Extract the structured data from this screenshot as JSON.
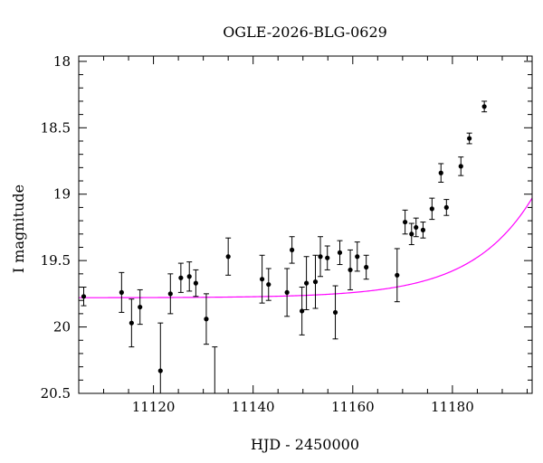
{
  "chart_data": {
    "type": "scatter",
    "title": "OGLE-2026-BLG-0629",
    "xlabel": "HJD - 2450000",
    "ylabel": "I magnitude",
    "xlim": [
      11105,
      11196
    ],
    "ylim": [
      20.5,
      17.96
    ],
    "y_inverted": true,
    "grid": false,
    "x_ticks": [
      11120,
      11140,
      11160,
      11180
    ],
    "x_tick_labels": [
      "11120",
      "11140",
      "11160",
      "11180"
    ],
    "y_ticks": [
      18,
      18.5,
      19,
      19.5,
      20,
      20.5
    ],
    "y_tick_labels": [
      "18",
      "18.5",
      "19",
      "19.5",
      "20",
      "20.5"
    ],
    "colors": {
      "model": "#ff00ff",
      "points": "#000000",
      "axes": "#000000"
    },
    "series": [
      {
        "type": "errorbar",
        "x": [
          11106.0,
          11113.6,
          11115.6,
          11117.3,
          11121.4,
          11123.4,
          11125.5,
          11127.2,
          11128.5,
          11130.6,
          11132.3,
          11135.0,
          11141.8,
          11143.1,
          11146.8,
          11147.8,
          11149.8,
          11150.7,
          11152.5,
          11153.5,
          11154.9,
          11156.5,
          11157.4,
          11159.5,
          11160.9,
          11162.7,
          11168.9,
          11170.5,
          11171.8,
          11172.7,
          11174.1,
          11175.9,
          11177.7,
          11178.8,
          11181.7,
          11183.4,
          11186.4
        ],
        "y": [
          19.77,
          19.74,
          19.97,
          19.85,
          20.33,
          19.75,
          19.63,
          19.62,
          19.67,
          19.94,
          20.55,
          19.47,
          19.64,
          19.68,
          19.74,
          19.42,
          19.88,
          19.67,
          19.66,
          19.47,
          19.48,
          19.89,
          19.44,
          19.57,
          19.47,
          19.55,
          19.61,
          19.21,
          19.3,
          19.25,
          19.27,
          19.11,
          18.84,
          19.1,
          18.79,
          18.58,
          18.34
        ],
        "err": [
          0.07,
          0.15,
          0.18,
          0.13,
          0.36,
          0.15,
          0.11,
          0.11,
          0.1,
          0.19,
          0.4,
          0.14,
          0.18,
          0.12,
          0.18,
          0.1,
          0.18,
          0.2,
          0.2,
          0.15,
          0.09,
          0.2,
          0.09,
          0.15,
          0.11,
          0.09,
          0.2,
          0.09,
          0.08,
          0.07,
          0.06,
          0.08,
          0.07,
          0.06,
          0.07,
          0.04,
          0.04
        ]
      },
      {
        "type": "line",
        "model": {
          "baseline": 19.78,
          "t0": 11199.5,
          "tE": 12.2
        }
      }
    ]
  }
}
